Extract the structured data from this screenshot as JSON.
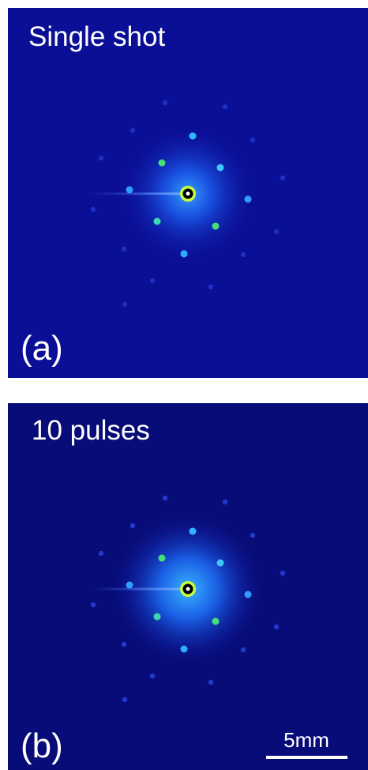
{
  "panels": [
    {
      "title": "Single shot",
      "label": "(a)"
    },
    {
      "title": "10 pulses",
      "label": "(b)"
    }
  ],
  "scale_bar": {
    "label": "5mm"
  }
}
